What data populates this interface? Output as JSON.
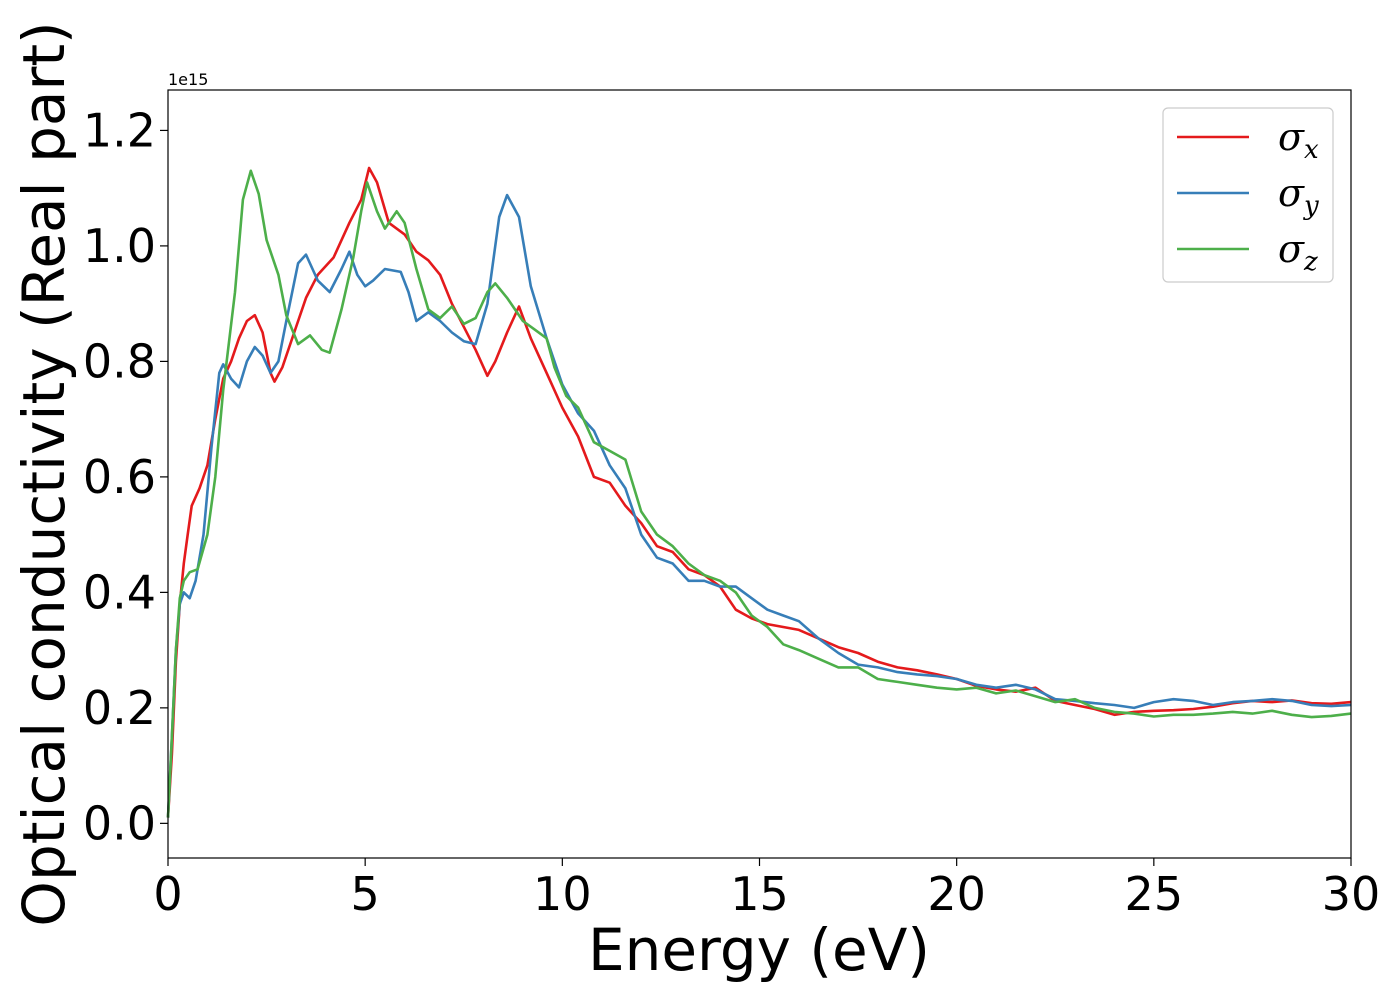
{
  "chart_data": {
    "type": "line",
    "title": "",
    "xlabel": "Energy (eV)",
    "ylabel": "Optical conductivity (Real part)",
    "y_offset_label": "1e15",
    "xlim": [
      0,
      30
    ],
    "ylim": [
      -0.06,
      1.27
    ],
    "xticks": [
      0,
      5,
      10,
      15,
      20,
      25,
      30
    ],
    "xtick_labels": [
      "0",
      "5",
      "10",
      "15",
      "20",
      "25",
      "30"
    ],
    "yticks": [
      0.0,
      0.2,
      0.4,
      0.6,
      0.8,
      1.0,
      1.2
    ],
    "ytick_labels": [
      "0.0",
      "0.2",
      "0.4",
      "0.6",
      "0.8",
      "1.0",
      "1.2"
    ],
    "grid": false,
    "legend_position": "top-right",
    "series": [
      {
        "name": "σx",
        "symbol": "σ",
        "subscript": "x",
        "color": "#e41a1c",
        "points": [
          [
            0,
            0.01
          ],
          [
            0.1,
            0.12
          ],
          [
            0.2,
            0.28
          ],
          [
            0.3,
            0.38
          ],
          [
            0.4,
            0.45
          ],
          [
            0.5,
            0.5
          ],
          [
            0.6,
            0.55
          ],
          [
            0.8,
            0.58
          ],
          [
            1.0,
            0.62
          ],
          [
            1.2,
            0.7
          ],
          [
            1.4,
            0.77
          ],
          [
            1.6,
            0.8
          ],
          [
            1.8,
            0.84
          ],
          [
            2.0,
            0.87
          ],
          [
            2.2,
            0.88
          ],
          [
            2.4,
            0.85
          ],
          [
            2.6,
            0.78
          ],
          [
            2.7,
            0.765
          ],
          [
            2.9,
            0.79
          ],
          [
            3.2,
            0.85
          ],
          [
            3.5,
            0.91
          ],
          [
            3.8,
            0.95
          ],
          [
            4.2,
            0.98
          ],
          [
            4.6,
            1.04
          ],
          [
            4.9,
            1.08
          ],
          [
            5.1,
            1.135
          ],
          [
            5.3,
            1.11
          ],
          [
            5.6,
            1.04
          ],
          [
            6.0,
            1.02
          ],
          [
            6.3,
            0.99
          ],
          [
            6.6,
            0.975
          ],
          [
            6.9,
            0.95
          ],
          [
            7.2,
            0.9
          ],
          [
            7.5,
            0.86
          ],
          [
            7.8,
            0.82
          ],
          [
            8.1,
            0.775
          ],
          [
            8.3,
            0.8
          ],
          [
            8.6,
            0.85
          ],
          [
            8.9,
            0.895
          ],
          [
            9.2,
            0.84
          ],
          [
            9.6,
            0.78
          ],
          [
            10.0,
            0.72
          ],
          [
            10.4,
            0.67
          ],
          [
            10.8,
            0.6
          ],
          [
            11.2,
            0.59
          ],
          [
            11.6,
            0.55
          ],
          [
            12.0,
            0.52
          ],
          [
            12.4,
            0.48
          ],
          [
            12.8,
            0.47
          ],
          [
            13.2,
            0.44
          ],
          [
            13.6,
            0.43
          ],
          [
            14.0,
            0.41
          ],
          [
            14.4,
            0.37
          ],
          [
            14.8,
            0.355
          ],
          [
            15.2,
            0.345
          ],
          [
            15.6,
            0.34
          ],
          [
            16.0,
            0.335
          ],
          [
            16.5,
            0.32
          ],
          [
            17.0,
            0.305
          ],
          [
            17.5,
            0.295
          ],
          [
            18.0,
            0.28
          ],
          [
            18.5,
            0.27
          ],
          [
            19.0,
            0.265
          ],
          [
            19.5,
            0.258
          ],
          [
            20.0,
            0.25
          ],
          [
            20.5,
            0.238
          ],
          [
            21.0,
            0.232
          ],
          [
            21.5,
            0.228
          ],
          [
            22.0,
            0.235
          ],
          [
            22.5,
            0.212
          ],
          [
            23.0,
            0.205
          ],
          [
            23.5,
            0.198
          ],
          [
            24.0,
            0.188
          ],
          [
            24.5,
            0.193
          ],
          [
            25.0,
            0.195
          ],
          [
            25.5,
            0.196
          ],
          [
            26.0,
            0.198
          ],
          [
            26.5,
            0.202
          ],
          [
            27.0,
            0.208
          ],
          [
            27.5,
            0.212
          ],
          [
            28.0,
            0.21
          ],
          [
            28.5,
            0.213
          ],
          [
            29.0,
            0.208
          ],
          [
            29.5,
            0.207
          ],
          [
            30.0,
            0.21
          ]
        ]
      },
      {
        "name": "σy",
        "symbol": "σ",
        "subscript": "y",
        "color": "#377eb8",
        "points": [
          [
            0,
            0.01
          ],
          [
            0.1,
            0.15
          ],
          [
            0.2,
            0.3
          ],
          [
            0.3,
            0.38
          ],
          [
            0.4,
            0.4
          ],
          [
            0.55,
            0.39
          ],
          [
            0.7,
            0.42
          ],
          [
            0.9,
            0.5
          ],
          [
            1.1,
            0.65
          ],
          [
            1.3,
            0.78
          ],
          [
            1.4,
            0.795
          ],
          [
            1.6,
            0.77
          ],
          [
            1.8,
            0.755
          ],
          [
            2.0,
            0.8
          ],
          [
            2.2,
            0.825
          ],
          [
            2.4,
            0.81
          ],
          [
            2.6,
            0.78
          ],
          [
            2.8,
            0.8
          ],
          [
            3.0,
            0.87
          ],
          [
            3.3,
            0.97
          ],
          [
            3.5,
            0.985
          ],
          [
            3.8,
            0.94
          ],
          [
            4.1,
            0.92
          ],
          [
            4.4,
            0.96
          ],
          [
            4.6,
            0.99
          ],
          [
            4.8,
            0.95
          ],
          [
            5.0,
            0.93
          ],
          [
            5.2,
            0.94
          ],
          [
            5.5,
            0.96
          ],
          [
            5.9,
            0.955
          ],
          [
            6.1,
            0.92
          ],
          [
            6.3,
            0.87
          ],
          [
            6.6,
            0.885
          ],
          [
            6.9,
            0.87
          ],
          [
            7.2,
            0.85
          ],
          [
            7.5,
            0.835
          ],
          [
            7.8,
            0.83
          ],
          [
            8.1,
            0.9
          ],
          [
            8.4,
            1.05
          ],
          [
            8.6,
            1.088
          ],
          [
            8.9,
            1.05
          ],
          [
            9.2,
            0.93
          ],
          [
            9.6,
            0.84
          ],
          [
            10.0,
            0.76
          ],
          [
            10.4,
            0.71
          ],
          [
            10.8,
            0.68
          ],
          [
            11.2,
            0.62
          ],
          [
            11.6,
            0.58
          ],
          [
            12.0,
            0.5
          ],
          [
            12.4,
            0.46
          ],
          [
            12.8,
            0.45
          ],
          [
            13.2,
            0.42
          ],
          [
            13.6,
            0.42
          ],
          [
            14.0,
            0.41
          ],
          [
            14.4,
            0.41
          ],
          [
            14.8,
            0.39
          ],
          [
            15.2,
            0.37
          ],
          [
            15.6,
            0.36
          ],
          [
            16.0,
            0.35
          ],
          [
            16.5,
            0.32
          ],
          [
            17.0,
            0.295
          ],
          [
            17.5,
            0.275
          ],
          [
            18.0,
            0.27
          ],
          [
            18.5,
            0.262
          ],
          [
            19.0,
            0.258
          ],
          [
            19.5,
            0.255
          ],
          [
            20.0,
            0.25
          ],
          [
            20.5,
            0.24
          ],
          [
            21.0,
            0.235
          ],
          [
            21.5,
            0.24
          ],
          [
            22.0,
            0.232
          ],
          [
            22.5,
            0.215
          ],
          [
            23.0,
            0.212
          ],
          [
            23.5,
            0.208
          ],
          [
            24.0,
            0.205
          ],
          [
            24.5,
            0.2
          ],
          [
            25.0,
            0.21
          ],
          [
            25.5,
            0.215
          ],
          [
            26.0,
            0.212
          ],
          [
            26.5,
            0.205
          ],
          [
            27.0,
            0.21
          ],
          [
            27.5,
            0.212
          ],
          [
            28.0,
            0.215
          ],
          [
            28.5,
            0.212
          ],
          [
            29.0,
            0.205
          ],
          [
            29.5,
            0.203
          ],
          [
            30.0,
            0.205
          ]
        ]
      },
      {
        "name": "σz",
        "symbol": "σ",
        "subscript": "z",
        "color": "#4daf4a",
        "points": [
          [
            0,
            0.01
          ],
          [
            0.1,
            0.15
          ],
          [
            0.2,
            0.3
          ],
          [
            0.3,
            0.39
          ],
          [
            0.4,
            0.42
          ],
          [
            0.55,
            0.435
          ],
          [
            0.75,
            0.44
          ],
          [
            1.0,
            0.5
          ],
          [
            1.2,
            0.6
          ],
          [
            1.4,
            0.75
          ],
          [
            1.7,
            0.92
          ],
          [
            1.9,
            1.08
          ],
          [
            2.1,
            1.13
          ],
          [
            2.3,
            1.09
          ],
          [
            2.5,
            1.01
          ],
          [
            2.8,
            0.95
          ],
          [
            3.0,
            0.88
          ],
          [
            3.3,
            0.83
          ],
          [
            3.6,
            0.845
          ],
          [
            3.9,
            0.82
          ],
          [
            4.1,
            0.815
          ],
          [
            4.4,
            0.89
          ],
          [
            4.7,
            0.98
          ],
          [
            4.9,
            1.06
          ],
          [
            5.05,
            1.11
          ],
          [
            5.3,
            1.06
          ],
          [
            5.5,
            1.03
          ],
          [
            5.8,
            1.06
          ],
          [
            6.0,
            1.04
          ],
          [
            6.3,
            0.96
          ],
          [
            6.6,
            0.89
          ],
          [
            6.9,
            0.875
          ],
          [
            7.2,
            0.895
          ],
          [
            7.5,
            0.865
          ],
          [
            7.8,
            0.875
          ],
          [
            8.1,
            0.92
          ],
          [
            8.3,
            0.935
          ],
          [
            8.6,
            0.91
          ],
          [
            9.0,
            0.87
          ],
          [
            9.3,
            0.855
          ],
          [
            9.6,
            0.84
          ],
          [
            9.8,
            0.79
          ],
          [
            10.1,
            0.74
          ],
          [
            10.4,
            0.72
          ],
          [
            10.8,
            0.66
          ],
          [
            11.2,
            0.645
          ],
          [
            11.6,
            0.63
          ],
          [
            12.0,
            0.54
          ],
          [
            12.4,
            0.5
          ],
          [
            12.8,
            0.48
          ],
          [
            13.2,
            0.45
          ],
          [
            13.6,
            0.43
          ],
          [
            14.0,
            0.42
          ],
          [
            14.4,
            0.4
          ],
          [
            14.8,
            0.36
          ],
          [
            15.2,
            0.34
          ],
          [
            15.6,
            0.31
          ],
          [
            16.0,
            0.3
          ],
          [
            16.5,
            0.285
          ],
          [
            17.0,
            0.27
          ],
          [
            17.5,
            0.27
          ],
          [
            18.0,
            0.25
          ],
          [
            18.5,
            0.245
          ],
          [
            19.0,
            0.24
          ],
          [
            19.5,
            0.235
          ],
          [
            20.0,
            0.232
          ],
          [
            20.5,
            0.235
          ],
          [
            21.0,
            0.225
          ],
          [
            21.5,
            0.23
          ],
          [
            22.0,
            0.22
          ],
          [
            22.5,
            0.21
          ],
          [
            23.0,
            0.215
          ],
          [
            23.5,
            0.2
          ],
          [
            24.0,
            0.193
          ],
          [
            24.5,
            0.19
          ],
          [
            25.0,
            0.185
          ],
          [
            25.5,
            0.188
          ],
          [
            26.0,
            0.188
          ],
          [
            26.5,
            0.19
          ],
          [
            27.0,
            0.193
          ],
          [
            27.5,
            0.19
          ],
          [
            28.0,
            0.195
          ],
          [
            28.5,
            0.188
          ],
          [
            29.0,
            0.184
          ],
          [
            29.5,
            0.186
          ],
          [
            30.0,
            0.19
          ]
        ]
      }
    ]
  }
}
